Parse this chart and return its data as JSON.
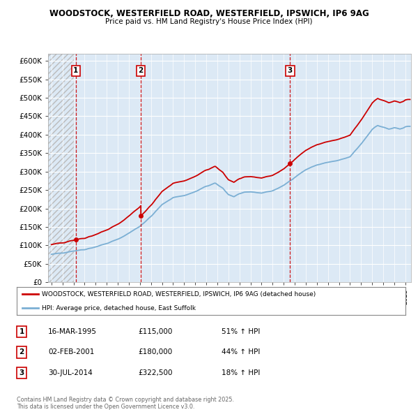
{
  "title1": "WOODSTOCK, WESTERFIELD ROAD, WESTERFIELD, IPSWICH, IP6 9AG",
  "title2": "Price paid vs. HM Land Registry's House Price Index (HPI)",
  "background_color": "#ffffff",
  "plot_bg_color": "#dce9f5",
  "grid_color": "#ffffff",
  "sale_dates": [
    1995.21,
    2001.09,
    2014.58
  ],
  "sale_prices": [
    115000,
    180000,
    322500
  ],
  "sale_labels": [
    "1",
    "2",
    "3"
  ],
  "hpi_line_color": "#7bafd4",
  "price_line_color": "#cc0000",
  "vline_color": "#cc0000",
  "legend_line1": "WOODSTOCK, WESTERFIELD ROAD, WESTERFIELD, IPSWICH, IP6 9AG (detached house)",
  "legend_line2": "HPI: Average price, detached house, East Suffolk",
  "table_data": [
    [
      "1",
      "16-MAR-1995",
      "£115,000",
      "51% ↑ HPI"
    ],
    [
      "2",
      "02-FEB-2001",
      "£180,000",
      "44% ↑ HPI"
    ],
    [
      "3",
      "30-JUL-2014",
      "£322,500",
      "18% ↑ HPI"
    ]
  ],
  "footnote": "Contains HM Land Registry data © Crown copyright and database right 2025.\nThis data is licensed under the Open Government Licence v3.0.",
  "ylim": [
    0,
    620000
  ],
  "xlim_left": 1992.7,
  "xlim_right": 2025.5
}
